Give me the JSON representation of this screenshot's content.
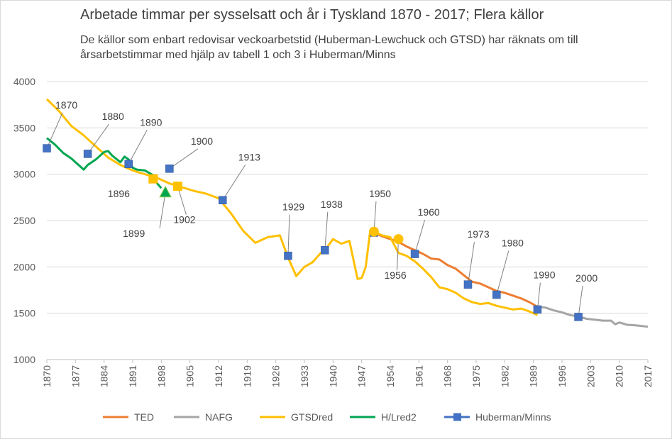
{
  "chart_data": {
    "type": "line",
    "title": "Arbetade timmar per sysselsatt och år i Tyskland 1870 - 2017; Flera källor",
    "subtitle": "De källor som enbart redovisar veckoarbetstid (Huberman-Lewchuck och GTSD) har räknats om till årsarbetstimmar med hjälp av tabell 1 och 3 i Huberman/Minns",
    "xlabel": "",
    "ylabel": "",
    "xlim": [
      1870,
      2017
    ],
    "ylim": [
      1000,
      4000
    ],
    "yticks": [
      1000,
      1500,
      2000,
      2500,
      3000,
      3500,
      4000
    ],
    "xticks": [
      1870,
      1877,
      1884,
      1891,
      1898,
      1905,
      1912,
      1919,
      1926,
      1933,
      1940,
      1947,
      1954,
      1961,
      1968,
      1975,
      1982,
      1989,
      1996,
      2003,
      2010,
      2017
    ],
    "grid": "horizontal",
    "legend": "bottom",
    "series": [
      {
        "name": "TED",
        "color": "#ED7D31",
        "marker": "none",
        "x": [
          1950,
          1952,
          1954,
          1956,
          1958,
          1960,
          1962,
          1964,
          1966,
          1968,
          1970,
          1972,
          1974,
          1976,
          1978,
          1980,
          1982,
          1984,
          1986,
          1988,
          1990
        ],
        "y": [
          2370,
          2330,
          2300,
          2270,
          2220,
          2180,
          2140,
          2090,
          2080,
          2020,
          1980,
          1910,
          1840,
          1820,
          1780,
          1740,
          1720,
          1690,
          1660,
          1620,
          1570
        ]
      },
      {
        "name": "NAFG",
        "color": "#A5A5A5",
        "marker": "none",
        "x": [
          1990,
          1992,
          1994,
          1996,
          1998,
          2000,
          2002,
          2004,
          2006,
          2008,
          2009,
          2010,
          2012,
          2014,
          2016,
          2017
        ],
        "y": [
          1570,
          1560,
          1530,
          1510,
          1480,
          1465,
          1440,
          1430,
          1420,
          1420,
          1380,
          1400,
          1375,
          1370,
          1360,
          1355
        ]
      },
      {
        "name": "GTSDred",
        "color": "#FFC000",
        "marker": "none",
        "x": [
          1870,
          1873,
          1876,
          1879,
          1882,
          1885,
          1888,
          1891,
          1894,
          1897,
          1900,
          1903,
          1906,
          1909,
          1912,
          1915,
          1918,
          1921,
          1924,
          1927,
          1929,
          1931,
          1932,
          1933,
          1935,
          1937,
          1938,
          1939,
          1940,
          1942,
          1944,
          1946,
          1947,
          1948,
          1949,
          1950,
          1952,
          1954,
          1956,
          1958,
          1960,
          1962,
          1964,
          1966,
          1968,
          1970,
          1972,
          1974,
          1976,
          1978,
          1980,
          1982,
          1984,
          1986,
          1988,
          1990
        ],
        "y": [
          3810,
          3680,
          3520,
          3420,
          3300,
          3180,
          3100,
          3040,
          3000,
          2960,
          2900,
          2860,
          2820,
          2790,
          2740,
          2580,
          2390,
          2260,
          2320,
          2340,
          2100,
          1900,
          1950,
          2000,
          2050,
          2150,
          2180,
          2240,
          2300,
          2250,
          2280,
          1870,
          1880,
          2000,
          2360,
          2380,
          2340,
          2320,
          2150,
          2120,
          2060,
          1980,
          1890,
          1780,
          1760,
          1720,
          1660,
          1620,
          1600,
          1610,
          1580,
          1560,
          1540,
          1550,
          1520,
          1480
        ]
      },
      {
        "name": "H/Lred2",
        "color": "#00A651",
        "marker": "none",
        "x": [
          1870,
          1872,
          1874,
          1876,
          1878,
          1879,
          1880,
          1882,
          1884,
          1885,
          1886,
          1888,
          1889,
          1890,
          1891,
          1892,
          1894,
          1896,
          1897,
          1898
        ],
        "y": [
          3390,
          3320,
          3230,
          3170,
          3090,
          3050,
          3100,
          3160,
          3240,
          3250,
          3200,
          3130,
          3190,
          3160,
          3070,
          3050,
          3040,
          2990,
          2900,
          2850
        ]
      },
      {
        "name": "Huberman/Minns",
        "color": "#4472C4",
        "marker": "square",
        "x": [
          1870,
          1880,
          1890,
          1900,
          1913,
          1929,
          1938,
          1950,
          1960,
          1973,
          1980,
          1990,
          2000
        ],
        "y": [
          3280,
          3220,
          3110,
          3060,
          2720,
          2120,
          2180,
          2370,
          2140,
          1810,
          1700,
          1540,
          1460
        ]
      }
    ],
    "extra_markers": [
      {
        "x": 1896,
        "y": 2950,
        "shape": "square",
        "color": "#FFC000"
      },
      {
        "x": 1899,
        "y": 2800,
        "shape": "triangle",
        "color": "#00A651"
      },
      {
        "x": 1902,
        "y": 2870,
        "shape": "square",
        "color": "#FFC000"
      },
      {
        "x": 1950,
        "y": 2380,
        "shape": "circle",
        "color": "#FFC000"
      },
      {
        "x": 1956,
        "y": 2300,
        "shape": "circle",
        "color": "#FFC000"
      }
    ],
    "annotations": [
      {
        "text": "1870",
        "x": 1870,
        "y": 3280
      },
      {
        "text": "1880",
        "x": 1880,
        "y": 3220
      },
      {
        "text": "1890",
        "x": 1890,
        "y": 3110
      },
      {
        "text": "1896",
        "x": 1896,
        "y": 2950
      },
      {
        "text": "1899",
        "x": 1899,
        "y": 2800
      },
      {
        "text": "1900",
        "x": 1900,
        "y": 3060
      },
      {
        "text": "1902",
        "x": 1902,
        "y": 2870
      },
      {
        "text": "1913",
        "x": 1913,
        "y": 2720
      },
      {
        "text": "1929",
        "x": 1929,
        "y": 2120
      },
      {
        "text": "1938",
        "x": 1938,
        "y": 2180
      },
      {
        "text": "1950",
        "x": 1950,
        "y": 2370
      },
      {
        "text": "1956",
        "x": 1956,
        "y": 2300
      },
      {
        "text": "1960",
        "x": 1960,
        "y": 2140
      },
      {
        "text": "1973",
        "x": 1973,
        "y": 1810
      },
      {
        "text": "1980",
        "x": 1980,
        "y": 1700
      },
      {
        "text": "1990",
        "x": 1990,
        "y": 1540
      },
      {
        "text": "2000",
        "x": 2000,
        "y": 1460
      }
    ]
  }
}
